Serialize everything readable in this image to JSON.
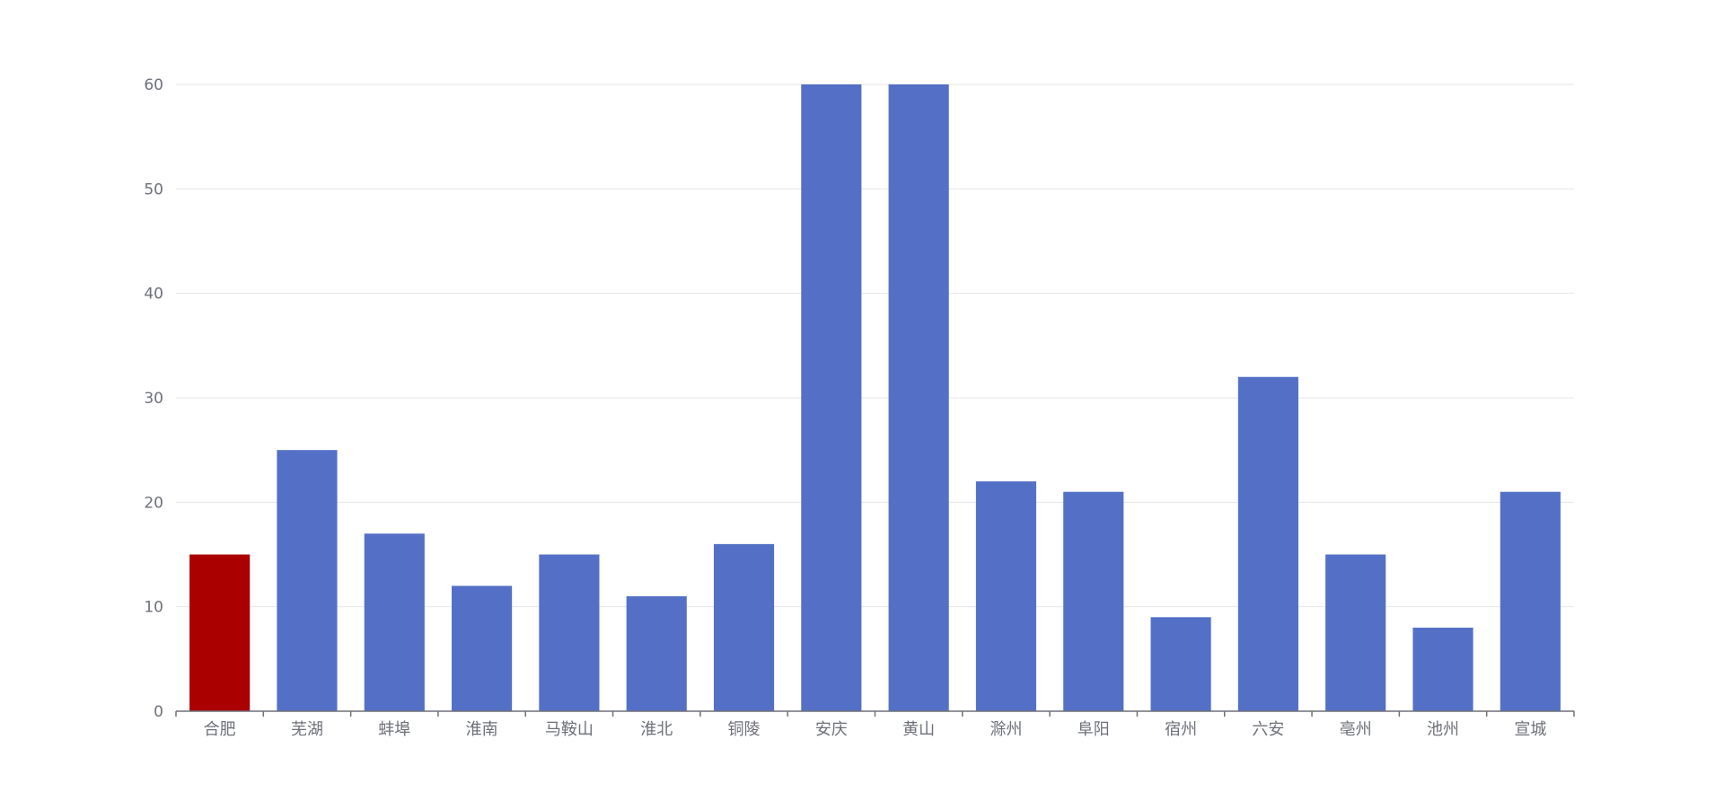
{
  "chart_data": {
    "type": "bar",
    "categories": [
      "合肥",
      "芜湖",
      "蚌埠",
      "淮南",
      "马鞍山",
      "淮北",
      "铜陵",
      "安庆",
      "黄山",
      "滁州",
      "阜阳",
      "宿州",
      "六安",
      "亳州",
      "池州",
      "宣城"
    ],
    "values": [
      15,
      25,
      17,
      12,
      15,
      11,
      16,
      60,
      60,
      22,
      21,
      9,
      32,
      15,
      8,
      21
    ],
    "ylim": [
      0,
      60
    ],
    "yticks": [
      0,
      10,
      20,
      30,
      40,
      50,
      60
    ],
    "grid": true,
    "legend": "none",
    "colors": {
      "default_bar": "#5470c6",
      "highlight_bar": "#aa0000",
      "grid": "#e6e6e6",
      "axis": "#6e7079"
    },
    "highlight_category": "合肥"
  }
}
